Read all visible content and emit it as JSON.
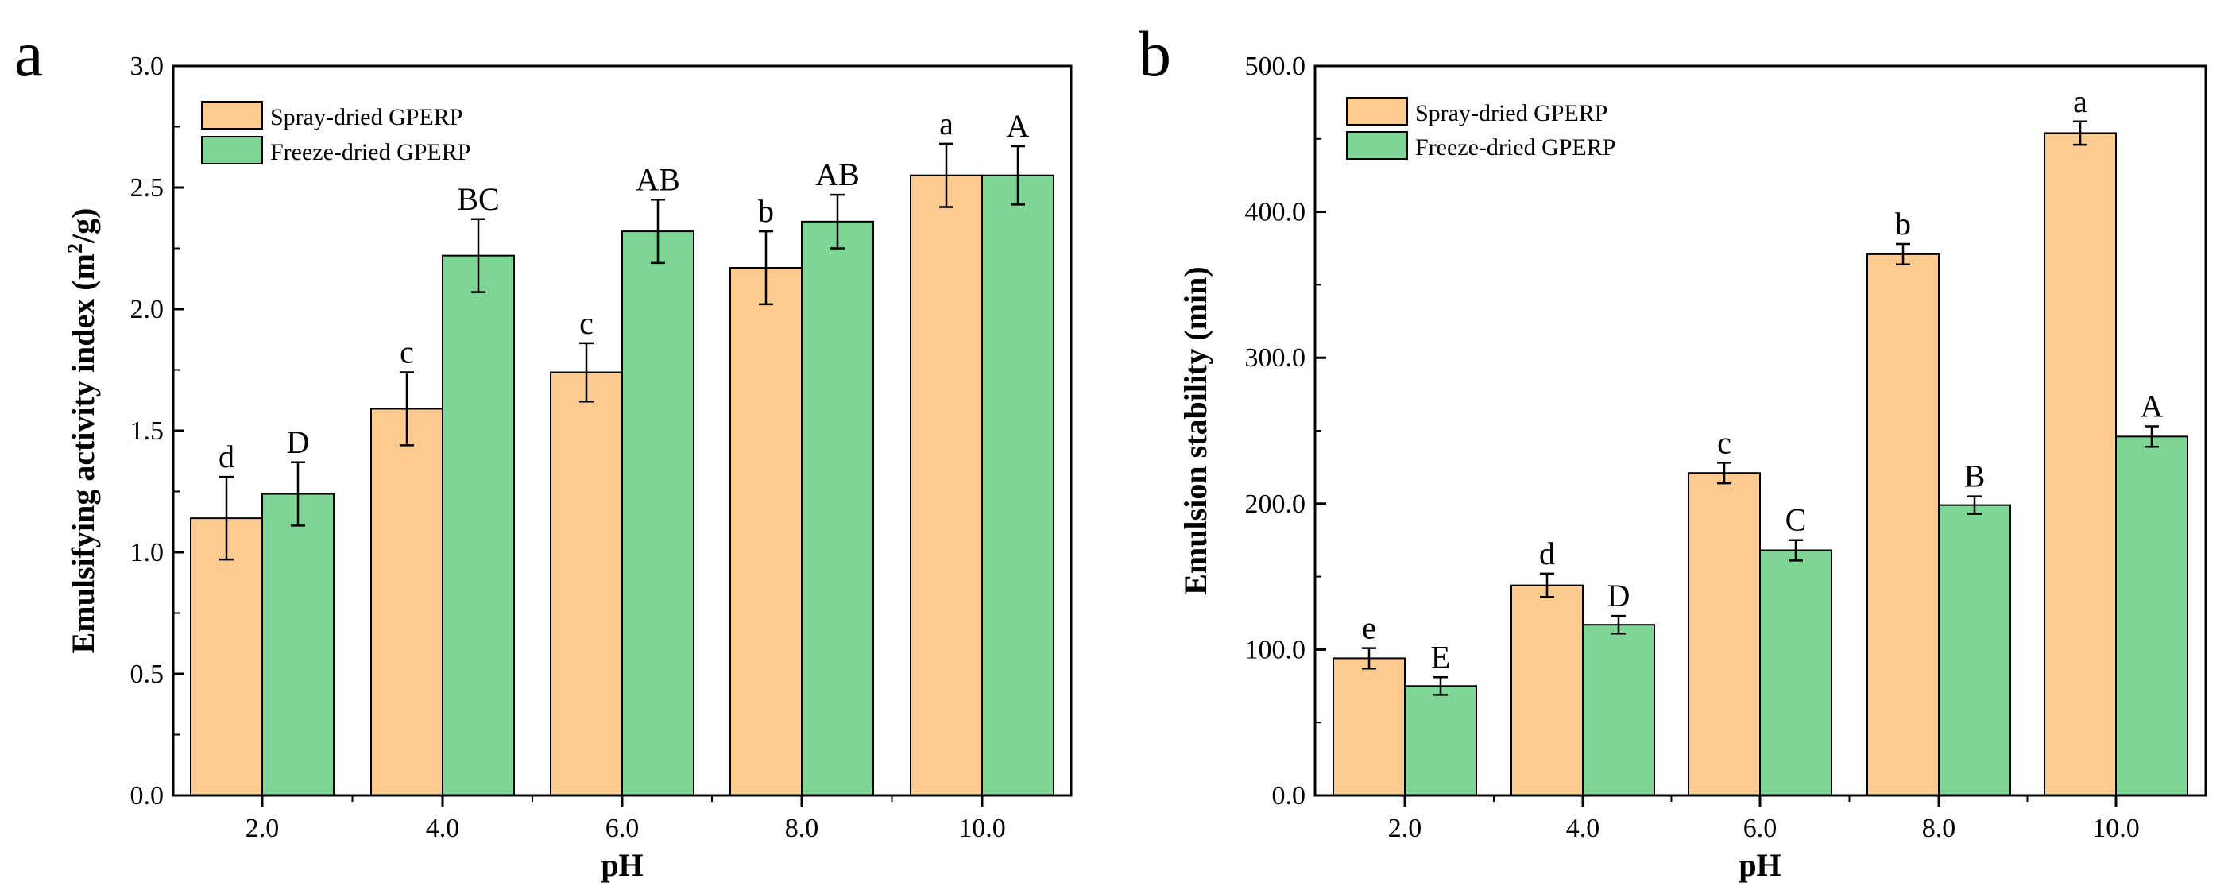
{
  "colors": {
    "spray": "#FDCB8F",
    "freeze": "#7DD694",
    "outline": "#000000"
  },
  "chart_data": [
    {
      "panel_label": "a",
      "type": "bar",
      "xlabel": "pH",
      "ylabel_main": "Emulsifying activity index (m",
      "ylabel_sup": "2",
      "ylabel_end": "/g)",
      "ylim": [
        0,
        3.0
      ],
      "yticks": [
        "0.0",
        "0.5",
        "1.0",
        "1.5",
        "2.0",
        "2.5",
        "3.0"
      ],
      "categories": [
        "2.0",
        "4.0",
        "6.0",
        "8.0",
        "10.0"
      ],
      "legend_position": "top-left",
      "series": [
        {
          "name": "Spray-dried GPERP",
          "values": [
            1.14,
            1.59,
            1.74,
            2.17,
            2.55
          ],
          "errors": [
            0.17,
            0.15,
            0.12,
            0.15,
            0.13
          ],
          "letters": [
            "d",
            "c",
            "c",
            "b",
            "a"
          ]
        },
        {
          "name": "Freeze-dried GPERP",
          "values": [
            1.24,
            2.22,
            2.32,
            2.36,
            2.55
          ],
          "errors": [
            0.13,
            0.15,
            0.13,
            0.11,
            0.12
          ],
          "letters": [
            "D",
            "BC",
            "AB",
            "AB",
            "A"
          ]
        }
      ]
    },
    {
      "panel_label": "b",
      "type": "bar",
      "xlabel": "pH",
      "ylabel_main": "Emulsion stability (min)",
      "ylabel_sup": "",
      "ylabel_end": "",
      "ylim": [
        0,
        500
      ],
      "yticks": [
        "0.0",
        "100.0",
        "200.0",
        "300.0",
        "400.0",
        "500.0"
      ],
      "categories": [
        "2.0",
        "4.0",
        "6.0",
        "8.0",
        "10.0"
      ],
      "legend_position": "top-left",
      "series": [
        {
          "name": "Spray-dried GPERP",
          "values": [
            94,
            144,
            221,
            371,
            454
          ],
          "errors": [
            7,
            8,
            7,
            7,
            8
          ],
          "letters": [
            "e",
            "d",
            "c",
            "b",
            "a"
          ]
        },
        {
          "name": "Freeze-dried GPERP",
          "values": [
            75,
            117,
            168,
            199,
            246
          ],
          "errors": [
            6,
            6,
            7,
            6,
            7
          ],
          "letters": [
            "E",
            "D",
            "C",
            "B",
            "A"
          ]
        }
      ]
    }
  ]
}
